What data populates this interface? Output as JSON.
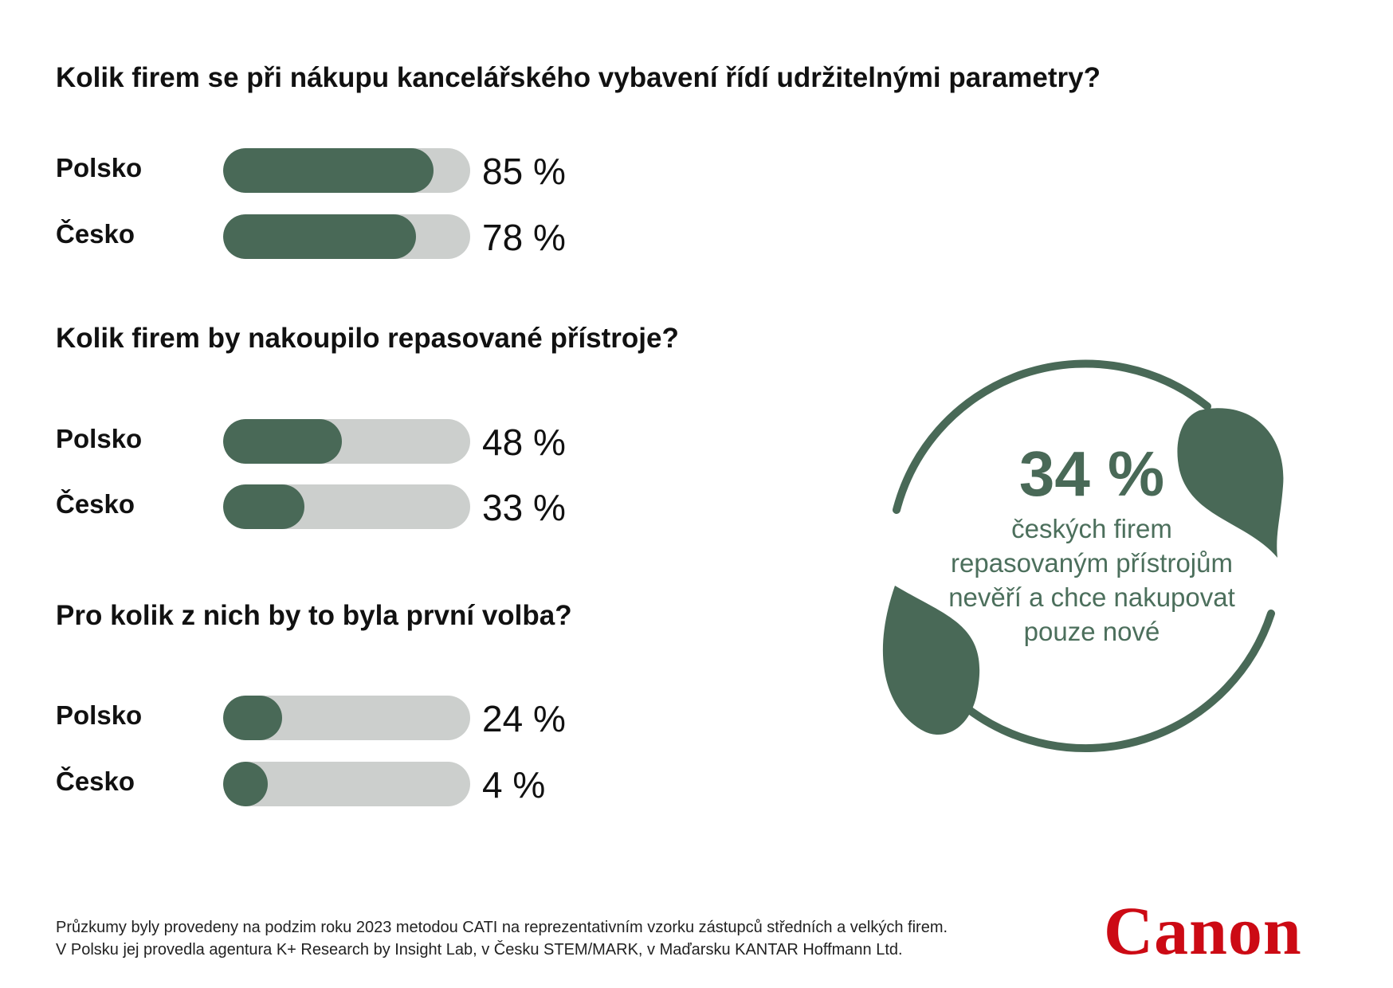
{
  "chart_data": [
    {
      "type": "bar",
      "title": "Kolik firem se při nákupu kancelářského vybavení řídí udržitelnými parametry?",
      "categories": [
        "Polsko",
        "Česko"
      ],
      "values": [
        85,
        78
      ],
      "value_labels": [
        "85 %",
        "78 %"
      ],
      "xlim": [
        0,
        100
      ]
    },
    {
      "type": "bar",
      "title": "Kolik firem by nakoupilo repasované přístroje?",
      "categories": [
        "Polsko",
        "Česko"
      ],
      "values": [
        48,
        33
      ],
      "value_labels": [
        "48 %",
        "33 %"
      ],
      "xlim": [
        0,
        100
      ]
    },
    {
      "type": "bar",
      "title": "Pro kolik z nich by to byla první volba?",
      "categories": [
        "Polsko",
        "Česko"
      ],
      "values": [
        24,
        4
      ],
      "value_labels": [
        "24 %",
        "4 %"
      ],
      "xlim": [
        0,
        100
      ]
    }
  ],
  "highlight": {
    "value": "34 %",
    "text_lines": [
      "českých firem",
      "repasovaným přístrojům",
      "nevěří a chce nakupovat",
      "pouze nové"
    ]
  },
  "footnote": {
    "line1": "Průzkumy byly provedeny na podzim roku 2023 metodou CATI na reprezentativním vzorku zástupců středních a velkých firem.",
    "line2": "V Polsku jej provedla agentura K+ Research by Insight Lab, v Česku STEM/MARK, v Maďarsku KANTAR Hoffmann Ltd."
  },
  "logo": "Canon",
  "colors": {
    "bar_fill": "#496957",
    "bar_track": "#cccfcd",
    "badge": "#496957",
    "logo": "#cc0a14"
  }
}
